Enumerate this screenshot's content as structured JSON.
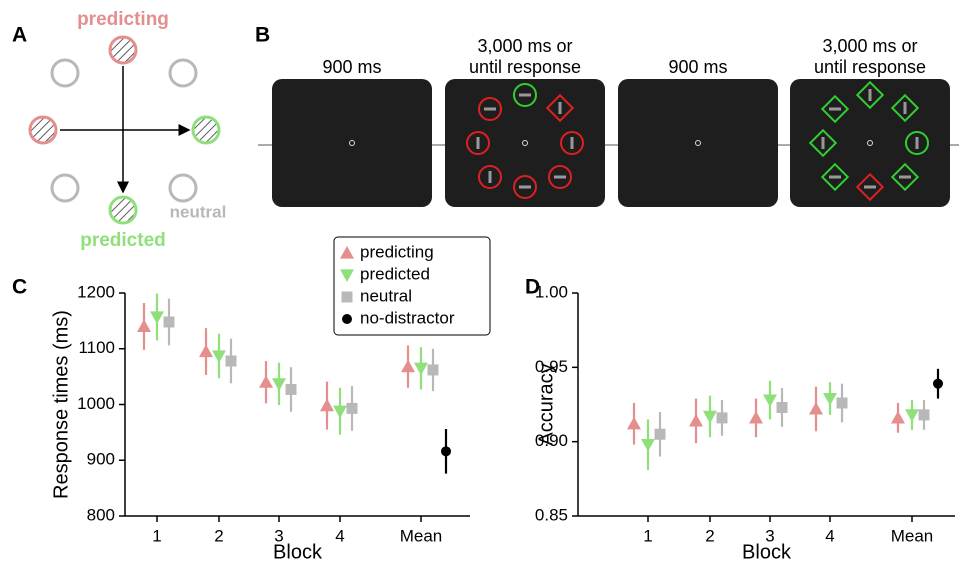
{
  "panels": {
    "a": "A",
    "b": "B",
    "c": "C",
    "d": "D"
  },
  "diagram": {
    "predicting": "predicting",
    "predicted": "predicted",
    "neutral": "neutral"
  },
  "timeline": [
    {
      "lines": [
        "900 ms"
      ]
    },
    {
      "lines": [
        "3,000 ms or",
        "until response"
      ]
    },
    {
      "lines": [
        "900 ms"
      ]
    },
    {
      "lines": [
        "3,000 ms or",
        "until response"
      ]
    }
  ],
  "chart_data": [
    {
      "type": "point",
      "xlabel": "Block",
      "ylabel": "Response times (ms)",
      "categories": [
        "1",
        "2",
        "3",
        "4",
        "Mean"
      ],
      "ylim": [
        800,
        1200
      ],
      "yticks": [
        800,
        900,
        1000,
        1100,
        1200
      ],
      "legend": "top-right",
      "series": [
        {
          "name": "predicting",
          "color": "#e58e8e",
          "marker": "triangle-up",
          "values": [
            1140,
            1095,
            1040,
            998,
            1068
          ],
          "errors": [
            42,
            42,
            38,
            43,
            38
          ]
        },
        {
          "name": "predicted",
          "color": "#8fe07a",
          "marker": "triangle-down",
          "values": [
            1157,
            1087,
            1037,
            988,
            1065
          ],
          "errors": [
            42,
            40,
            38,
            42,
            38
          ]
        },
        {
          "name": "neutral",
          "color": "#b8b8b8",
          "marker": "square",
          "values": [
            1148,
            1078,
            1027,
            993,
            1062
          ],
          "errors": [
            42,
            40,
            40,
            40,
            38
          ]
        },
        {
          "name": "no-distractor",
          "color": "#000000",
          "marker": "circle",
          "values": [
            null,
            null,
            null,
            null,
            916
          ],
          "errors": [
            null,
            null,
            null,
            null,
            40
          ]
        }
      ]
    },
    {
      "type": "point",
      "xlabel": "Block",
      "ylabel": "Accuracy",
      "categories": [
        "1",
        "2",
        "3",
        "4",
        "Mean"
      ],
      "ylim": [
        0.85,
        1.0
      ],
      "yticks": [
        0.85,
        {
          "value": 0.9,
          "label": "0.90"
        },
        0.95,
        {
          "value": 1.0,
          "label": "1.00"
        }
      ],
      "series": [
        {
          "color": "#e58e8e",
          "marker": "triangle-up",
          "values": [
            0.912,
            0.914,
            0.916,
            0.922,
            0.916
          ],
          "errors": [
            0.014,
            0.015,
            0.013,
            0.015,
            0.01
          ]
        },
        {
          "color": "#8fe07a",
          "marker": "triangle-down",
          "values": [
            0.898,
            0.917,
            0.928,
            0.929,
            0.918
          ],
          "errors": [
            0.017,
            0.014,
            0.013,
            0.011,
            0.01
          ]
        },
        {
          "color": "#b8b8b8",
          "marker": "square",
          "values": [
            0.905,
            0.916,
            0.923,
            0.926,
            0.918
          ],
          "errors": [
            0.015,
            0.012,
            0.013,
            0.013,
            0.01
          ]
        },
        {
          "color": "#000000",
          "marker": "circle",
          "values": [
            null,
            null,
            null,
            null,
            0.939
          ],
          "errors": [
            null,
            null,
            null,
            null,
            0.01
          ]
        }
      ]
    }
  ]
}
